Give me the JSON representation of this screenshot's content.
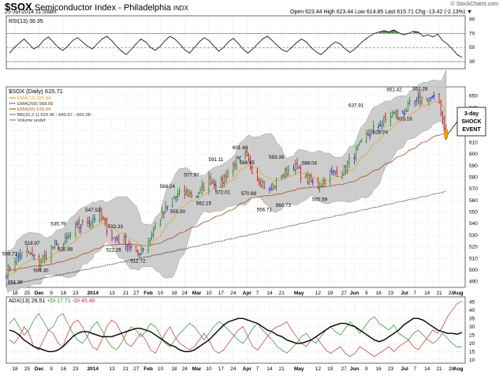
{
  "header": {
    "symbol": "$SOX",
    "name": "Semiconductor Index - Philadelphia",
    "exchange": "INDX",
    "datetime": "25-Jul-2014 11:33am",
    "ohlc": "Open 623.44  High 623.44  Low 614.85  Last 615.71  Chg -13.42 (-2.13%) ▼",
    "logo": "© StockCharts.com"
  },
  "colors": {
    "up": "#2e8b2e",
    "down": "#d02020",
    "neutral": "#3a3acc",
    "ema13": "#e0a020",
    "ema200": "#000000",
    "ema65": "#b05a30",
    "band": "#c8c8c8",
    "band_edge": "#8a8a8a",
    "grid": "#bcbcbc",
    "rsi_fill": "#4a7a4a",
    "adx": "#000000",
    "pdi": "#2e8b2e",
    "mdi": "#c0303a"
  },
  "chart_data": [
    {
      "panel": "rsi",
      "type": "line",
      "title": "RSI(13) 36.35",
      "ylim": [
        20,
        95
      ],
      "ticks": [
        30,
        50,
        70,
        90
      ],
      "ref_lines": [
        30,
        50,
        70
      ],
      "values": [
        42,
        50,
        56,
        62,
        55,
        48,
        52,
        60,
        65,
        58,
        50,
        46,
        52,
        60,
        64,
        58,
        52,
        48,
        55,
        62,
        66,
        60,
        52,
        45,
        40,
        47,
        55,
        62,
        58,
        50,
        46,
        52,
        60,
        66,
        62,
        55,
        47,
        42,
        50,
        58,
        64,
        60,
        52,
        45,
        50,
        58,
        63,
        56,
        48,
        42,
        48,
        55,
        62,
        66,
        60,
        53,
        47,
        44,
        50,
        57,
        62,
        58,
        50,
        44,
        40,
        46,
        53,
        58,
        55,
        48,
        43,
        48,
        55,
        61,
        66,
        70,
        72,
        74,
        72,
        75,
        71,
        68,
        70,
        73,
        72,
        66,
        68,
        65,
        69,
        60,
        55,
        48,
        40,
        36
      ]
    },
    {
      "panel": "price",
      "type": "ohlc",
      "title": "$SOX (Daily) 615.71",
      "legend": [
        "EMA(13) 626.84",
        "EMA(200) 568.00",
        "EMA(65) 616.94",
        "BB(15,2.1) 620.96 - 640.67 - 660.38",
        "Volume undef"
      ],
      "ylim": [
        485,
        658
      ],
      "ticks": [
        490,
        500,
        510,
        520,
        530,
        540,
        550,
        560,
        570,
        580,
        590,
        600,
        610,
        620,
        630,
        640,
        650
      ],
      "xlabels": [
        "18",
        "25",
        "Dec",
        "9",
        "16",
        "23",
        "2014",
        "13",
        "21",
        "27",
        "Feb",
        "10",
        "18",
        "24",
        "Mar",
        "10",
        "17",
        "24",
        "Apr",
        "7",
        "14",
        "21",
        "May",
        "12",
        "19",
        "27",
        "Jun",
        "9",
        "16",
        "23",
        "Jul",
        "7",
        "14",
        "21",
        "28",
        "Aug"
      ],
      "x_days": [
        "2013-11-18",
        "2013-11-25",
        "2013-12-02",
        "2013-12-09",
        "2013-12-16",
        "2013-12-23",
        "2014-01-02",
        "2014-01-13",
        "2014-01-21",
        "2014-01-27",
        "2014-02-03",
        "2014-02-10",
        "2014-02-18",
        "2014-02-24",
        "2014-03-03",
        "2014-03-10",
        "2014-03-17",
        "2014-03-24",
        "2014-04-01",
        "2014-04-07",
        "2014-04-14",
        "2014-04-21",
        "2014-05-01",
        "2014-05-12",
        "2014-05-19",
        "2014-05-27",
        "2014-06-02",
        "2014-06-09",
        "2014-06-16",
        "2014-06-23",
        "2014-07-01",
        "2014-07-07",
        "2014-07-14",
        "2014-07-21",
        "2014-07-28",
        "2014-08-01"
      ],
      "x_start": "2013-11-13",
      "x_end": "2014-08-05",
      "close_days": [
        "2013-11-13",
        "2013-11-18",
        "2013-11-25",
        "2013-12-02",
        "2013-12-09",
        "2013-12-16",
        "2013-12-23",
        "2013-12-30",
        "2014-01-06",
        "2014-01-13",
        "2014-01-21",
        "2014-01-27",
        "2014-02-03",
        "2014-02-10",
        "2014-02-18",
        "2014-02-24",
        "2014-03-03",
        "2014-03-10",
        "2014-03-17",
        "2014-03-24",
        "2014-03-31",
        "2014-04-07",
        "2014-04-14",
        "2014-04-21",
        "2014-04-28",
        "2014-05-05",
        "2014-05-12",
        "2014-05-19",
        "2014-05-27",
        "2014-06-02",
        "2014-06-09",
        "2014-06-16",
        "2014-06-23",
        "2014-06-30",
        "2014-07-07",
        "2014-07-14",
        "2014-07-21",
        "2014-07-25"
      ],
      "closes": [
        498,
        509.7,
        516,
        506,
        518.97,
        522.88,
        535.79,
        542,
        547.52,
        528,
        524,
        512.72,
        525,
        545,
        563,
        566,
        565,
        578,
        575,
        591,
        598,
        580,
        568,
        582,
        590,
        578,
        572,
        583,
        586,
        600,
        615,
        625,
        633,
        636,
        645,
        649,
        645,
        615.71
      ],
      "annotations": [
        {
          "date": "2013-11-15",
          "value": 509.71,
          "label": "509.71",
          "pos": "above"
        },
        {
          "date": "2013-11-18",
          "value": 494.3,
          "label": "494.30",
          "pos": "below"
        },
        {
          "date": "2013-11-28",
          "value": 518.97,
          "label": "518.97",
          "pos": "above"
        },
        {
          "date": "2013-12-03",
          "value": 504.3,
          "label": "504.30",
          "pos": "below"
        },
        {
          "date": "2013-12-13",
          "value": 535.79,
          "label": "535.79",
          "pos": "above"
        },
        {
          "date": "2013-12-17",
          "value": 522.88,
          "label": "522.88",
          "pos": "below"
        },
        {
          "date": "2014-01-02",
          "value": 547.52,
          "label": "547.52",
          "pos": "above"
        },
        {
          "date": "2014-01-15",
          "value": 533.33,
          "label": "533.33",
          "pos": "above"
        },
        {
          "date": "2014-01-14",
          "value": 522.26,
          "label": "522.26",
          "pos": "below"
        },
        {
          "date": "2014-01-28",
          "value": 512.72,
          "label": "512.72",
          "pos": "below"
        },
        {
          "date": "2014-02-14",
          "value": 568.24,
          "label": "568.24",
          "pos": "above"
        },
        {
          "date": "2014-02-20",
          "value": 555,
          "label": "555.00",
          "pos": "below"
        },
        {
          "date": "2014-02-28",
          "value": 577.97,
          "label": "577.97",
          "pos": "above"
        },
        {
          "date": "2014-03-07",
          "value": 562.15,
          "label": "562.15",
          "pos": "below"
        },
        {
          "date": "2014-03-14",
          "value": 591.11,
          "label": "591.11",
          "pos": "above"
        },
        {
          "date": "2014-03-18",
          "value": 572.01,
          "label": "572.01",
          "pos": "below"
        },
        {
          "date": "2014-03-28",
          "value": 601.4,
          "label": "601.40",
          "pos": "above"
        },
        {
          "date": "2014-04-01",
          "value": 588.45,
          "label": "588.45",
          "pos": "above"
        },
        {
          "date": "2014-04-02",
          "value": 570.68,
          "label": "570.68",
          "pos": "below"
        },
        {
          "date": "2014-04-11",
          "value": 556.71,
          "label": "556.71",
          "pos": "below"
        },
        {
          "date": "2014-04-18",
          "value": 593.39,
          "label": "593.39",
          "pos": "above"
        },
        {
          "date": "2014-04-22",
          "value": 560.73,
          "label": "560.73",
          "pos": "below"
        },
        {
          "date": "2014-05-07",
          "value": 588.04,
          "label": "588.04",
          "pos": "above"
        },
        {
          "date": "2014-05-13",
          "value": 565.59,
          "label": "565.59",
          "pos": "below"
        },
        {
          "date": "2014-06-03",
          "value": 637.91,
          "label": "637.91",
          "pos": "above"
        },
        {
          "date": "2014-06-17",
          "value": 623.74,
          "label": "623.74",
          "pos": "below"
        },
        {
          "date": "2014-06-25",
          "value": 651.42,
          "label": "651.42",
          "pos": "above"
        },
        {
          "date": "2014-07-01",
          "value": 635.16,
          "label": "635.16",
          "pos": "below"
        },
        {
          "date": "2014-07-10",
          "value": 652.28,
          "label": "652.28",
          "pos": "above"
        }
      ],
      "callout": "3-day SHOCK EVENT"
    },
    {
      "panel": "adx",
      "type": "line",
      "title": "ADX(13) 26.51",
      "plus_di_label": "+DI 17.71",
      "minus_di_label": "-DI 45.40",
      "ylim": [
        8,
        48
      ],
      "ticks": [
        10,
        15,
        20,
        25,
        30,
        35,
        40,
        45
      ],
      "adx": [
        28,
        27,
        25,
        22,
        20,
        18,
        17,
        16,
        15,
        15,
        16,
        18,
        21,
        24,
        26,
        27,
        27,
        26,
        25,
        24,
        24,
        24,
        25,
        26,
        27,
        28,
        29,
        29,
        28,
        27,
        25,
        23,
        21,
        19,
        18,
        16,
        15,
        15,
        16,
        18,
        20,
        22,
        25,
        28,
        31,
        33,
        34,
        35,
        35,
        34,
        33,
        32,
        30,
        28,
        27,
        25,
        24,
        22,
        21,
        20,
        20,
        21,
        22,
        24,
        26,
        28,
        30,
        31,
        32,
        32,
        31,
        30,
        28,
        26,
        24,
        22,
        21,
        22,
        24,
        26,
        28,
        31,
        33,
        35,
        35,
        34,
        32,
        30,
        28,
        27,
        26,
        26,
        25.5,
        26.51
      ],
      "plus_di": [
        32,
        35,
        30,
        25,
        28,
        34,
        38,
        33,
        28,
        30,
        36,
        38,
        32,
        26,
        22,
        20,
        24,
        30,
        33,
        28,
        22,
        18,
        16,
        20,
        26,
        30,
        28,
        24,
        27,
        32,
        30,
        25,
        20,
        18,
        22,
        26,
        29,
        32,
        30,
        26,
        22,
        26,
        30,
        33,
        31,
        28,
        25,
        22,
        20,
        24,
        29,
        32,
        28,
        25,
        22,
        18,
        16,
        14,
        17,
        20,
        24,
        26,
        22,
        20,
        24,
        28,
        30,
        27,
        25,
        29,
        33,
        30,
        26,
        30,
        34,
        36,
        32,
        30,
        28,
        31,
        26,
        24,
        22,
        26,
        28,
        25,
        22,
        20,
        22,
        26,
        23,
        20,
        17.71,
        17.71
      ],
      "minus_di": [
        22,
        20,
        24,
        30,
        26,
        18,
        16,
        22,
        28,
        26,
        20,
        18,
        26,
        32,
        34,
        30,
        24,
        18,
        16,
        22,
        30,
        34,
        32,
        26,
        20,
        18,
        22,
        26,
        22,
        16,
        14,
        20,
        26,
        30,
        24,
        20,
        18,
        16,
        18,
        22,
        26,
        22,
        16,
        14,
        16,
        20,
        24,
        28,
        30,
        24,
        18,
        16,
        20,
        24,
        28,
        30,
        31,
        33,
        28,
        24,
        20,
        18,
        22,
        24,
        20,
        16,
        14,
        16,
        18,
        14,
        12,
        14,
        18,
        16,
        14,
        12,
        14,
        16,
        18,
        15,
        18,
        20,
        22,
        18,
        16,
        20,
        24,
        28,
        26,
        30,
        36,
        40,
        44,
        45.4
      ]
    }
  ]
}
